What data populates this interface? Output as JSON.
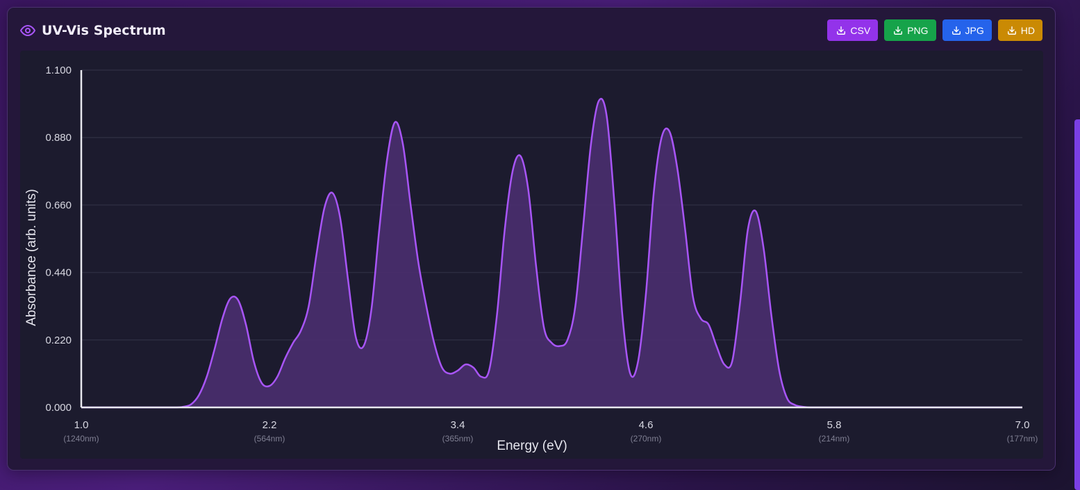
{
  "header": {
    "title": "UV-Vis Spectrum",
    "buttons": [
      {
        "label": "CSV",
        "color": "#9333ea"
      },
      {
        "label": "PNG",
        "color": "#16a34a"
      },
      {
        "label": "JPG",
        "color": "#2563eb"
      },
      {
        "label": "HD",
        "color": "#ca8a04"
      }
    ]
  },
  "colors": {
    "line": "#a855f7",
    "fill": "#4c2f72",
    "accent": "#a855f7"
  },
  "chart_data": {
    "type": "area",
    "xlabel": "Energy (eV)",
    "ylabel": "Absorbance (arb. units)",
    "xlim": [
      1.0,
      7.0
    ],
    "ylim": [
      0.0,
      1.1
    ],
    "x_ticks": [
      {
        "value": 1.0,
        "label": "1.0",
        "sub": "(1240nm)"
      },
      {
        "value": 2.2,
        "label": "2.2",
        "sub": "(564nm)"
      },
      {
        "value": 3.4,
        "label": "3.4",
        "sub": "(365nm)"
      },
      {
        "value": 4.6,
        "label": "4.6",
        "sub": "(270nm)"
      },
      {
        "value": 5.8,
        "label": "5.8",
        "sub": "(214nm)"
      },
      {
        "value": 7.0,
        "label": "7.0",
        "sub": "(177nm)"
      }
    ],
    "y_ticks": [
      {
        "value": 0.0,
        "label": "0.000"
      },
      {
        "value": 0.22,
        "label": "0.220"
      },
      {
        "value": 0.44,
        "label": "0.440"
      },
      {
        "value": 0.66,
        "label": "0.660"
      },
      {
        "value": 0.88,
        "label": "0.880"
      },
      {
        "value": 1.1,
        "label": "1.100"
      }
    ],
    "grid": true,
    "series": [
      {
        "x": [
          1.0,
          1.2,
          1.4,
          1.6,
          1.65,
          1.7,
          1.75,
          1.8,
          1.85,
          1.9,
          1.95,
          2.0,
          2.05,
          2.1,
          2.15,
          2.2,
          2.25,
          2.3,
          2.35,
          2.4,
          2.45,
          2.5,
          2.55,
          2.6,
          2.65,
          2.7,
          2.75,
          2.8,
          2.85,
          2.9,
          2.95,
          3.0,
          3.05,
          3.1,
          3.15,
          3.2,
          3.25,
          3.3,
          3.35,
          3.4,
          3.45,
          3.5,
          3.55,
          3.6,
          3.65,
          3.7,
          3.75,
          3.8,
          3.85,
          3.9,
          3.95,
          4.0,
          4.05,
          4.1,
          4.15,
          4.2,
          4.25,
          4.3,
          4.35,
          4.4,
          4.45,
          4.5,
          4.55,
          4.6,
          4.65,
          4.7,
          4.75,
          4.8,
          4.85,
          4.9,
          4.95,
          5.0,
          5.05,
          5.1,
          5.15,
          5.2,
          5.25,
          5.3,
          5.35,
          5.4,
          5.45,
          5.5,
          5.55,
          5.6,
          5.65,
          5.7,
          5.75,
          5.8,
          5.85,
          5.9,
          5.95,
          6.0,
          6.05,
          6.1,
          6.2,
          6.4,
          6.6,
          6.8,
          7.0
        ],
        "y": [
          0.0,
          0.0,
          0.0,
          0.0,
          0.002,
          0.01,
          0.04,
          0.1,
          0.19,
          0.29,
          0.355,
          0.35,
          0.27,
          0.15,
          0.08,
          0.07,
          0.1,
          0.16,
          0.21,
          0.25,
          0.33,
          0.5,
          0.65,
          0.7,
          0.62,
          0.42,
          0.23,
          0.2,
          0.32,
          0.58,
          0.81,
          0.93,
          0.86,
          0.66,
          0.47,
          0.33,
          0.21,
          0.13,
          0.11,
          0.12,
          0.14,
          0.13,
          0.1,
          0.12,
          0.3,
          0.58,
          0.77,
          0.82,
          0.71,
          0.46,
          0.26,
          0.21,
          0.2,
          0.22,
          0.33,
          0.59,
          0.86,
          1.0,
          0.95,
          0.66,
          0.3,
          0.11,
          0.15,
          0.37,
          0.7,
          0.88,
          0.9,
          0.78,
          0.58,
          0.36,
          0.29,
          0.27,
          0.2,
          0.14,
          0.15,
          0.34,
          0.58,
          0.64,
          0.52,
          0.3,
          0.12,
          0.03,
          0.008,
          0.002,
          0.0,
          0.0,
          0.0,
          0.0,
          0.0,
          0.0,
          0.0,
          0.0,
          0.0,
          0.0,
          0.0,
          0.0,
          0.0,
          0.0,
          0.0
        ]
      }
    ]
  }
}
